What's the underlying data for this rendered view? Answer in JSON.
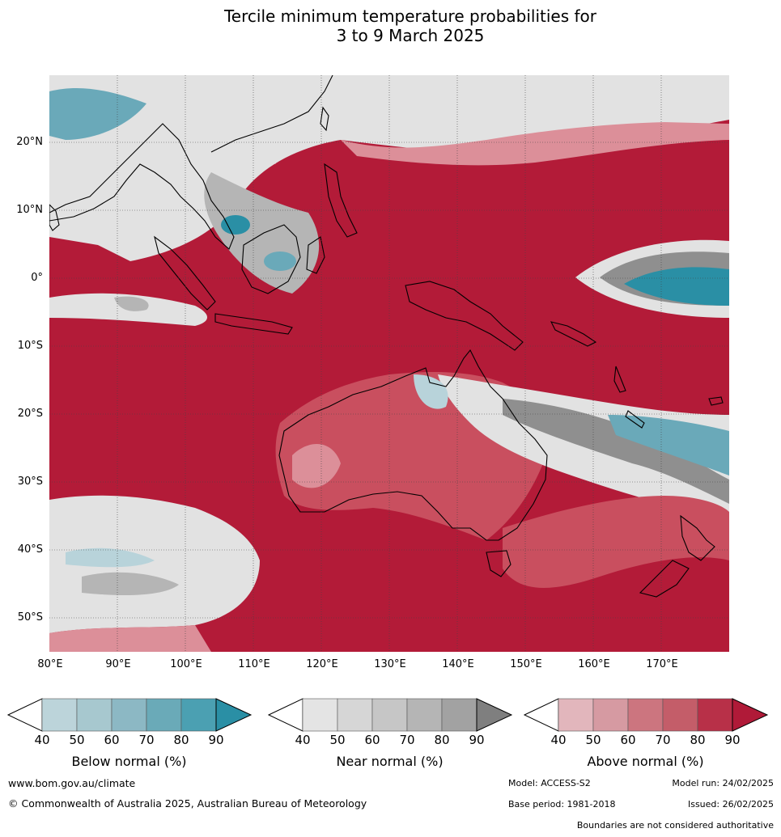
{
  "title": {
    "line1": "Tercile minimum temperature probabilities for",
    "line2": "3 to 9 March 2025"
  },
  "map": {
    "lat_ticks": [
      "20°N",
      "10°N",
      "0°",
      "10°S",
      "20°S",
      "30°S",
      "40°S",
      "50°S"
    ],
    "lon_ticks": [
      "80°E",
      "90°E",
      "100°E",
      "110°E",
      "120°E",
      "130°E",
      "140°E",
      "150°E",
      "160°E",
      "170°E"
    ],
    "colors": {
      "above_dark": "#b31b38",
      "above_mid": "#c94f5f",
      "above_light": "#dc8f99",
      "near_light": "#e2e2e2",
      "near_mid": "#b5b5b5",
      "near_dark": "#8f8f8f",
      "below_light": "#b8d3da",
      "below_mid": "#6aa9b9",
      "below_dark": "#2a8fa5",
      "land_outline": "#000000"
    }
  },
  "legends": [
    {
      "label": "Below normal (%)",
      "ticks": [
        "40",
        "50",
        "60",
        "70",
        "80",
        "90"
      ],
      "colors": [
        "#ffffff",
        "#bcd4da",
        "#a7c8cf",
        "#8cb8c4",
        "#6aaab8",
        "#4ba0b2",
        "#2a8fa5"
      ]
    },
    {
      "label": "Near normal (%)",
      "ticks": [
        "40",
        "50",
        "60",
        "70",
        "80",
        "90"
      ],
      "colors": [
        "#ffffff",
        "#e4e4e4",
        "#d6d6d6",
        "#c6c6c6",
        "#b5b5b5",
        "#a2a2a2",
        "#7f7f7f"
      ]
    },
    {
      "label": "Above normal (%)",
      "ticks": [
        "40",
        "50",
        "60",
        "70",
        "80",
        "90"
      ],
      "colors": [
        "#ffffff",
        "#e2b6bc",
        "#d69aa2",
        "#cc757f",
        "#c45d69",
        "#b83048",
        "#b01a38"
      ]
    }
  ],
  "footer": {
    "website": "www.bom.gov.au/climate",
    "copyright": "© Commonwealth of Australia 2025, Australian Bureau of Meteorology",
    "model": "Model: ACCESS-S2",
    "model_run": "Model run: 24/02/2025",
    "base_period": "Base period: 1981-2018",
    "issued": "Issued: 26/02/2025",
    "disclaimer": "Boundaries are not considered authoritative"
  }
}
